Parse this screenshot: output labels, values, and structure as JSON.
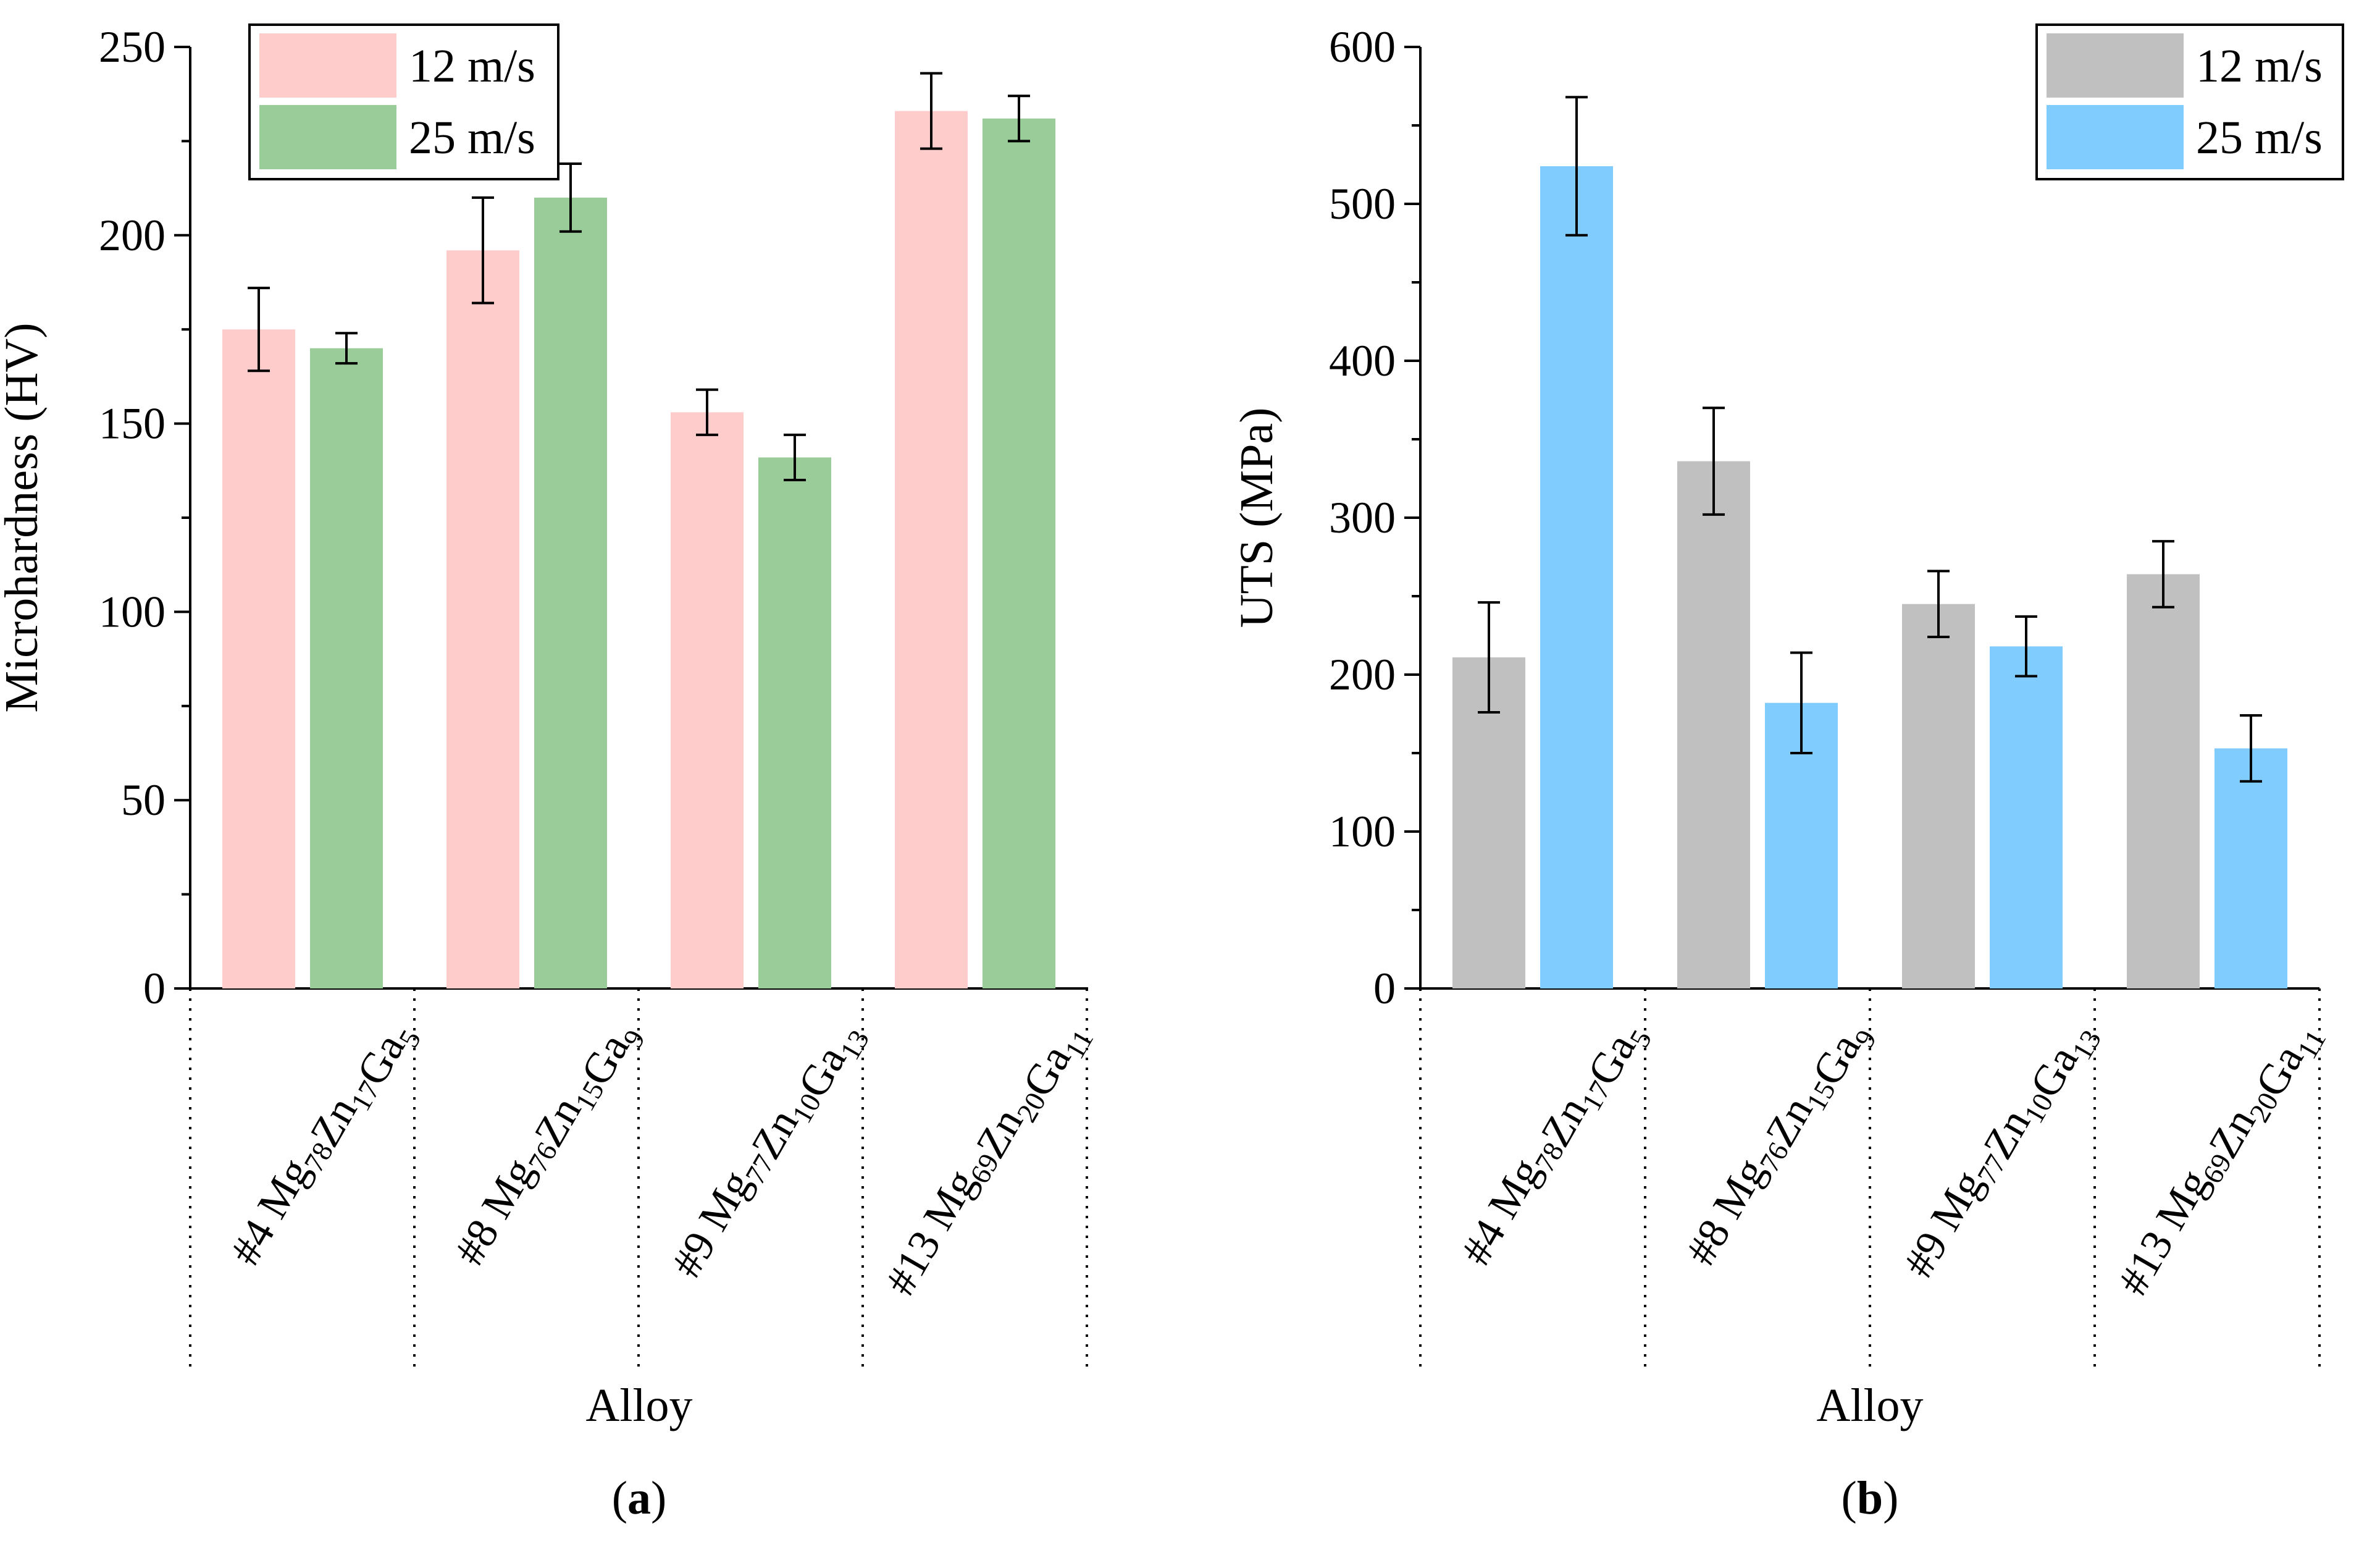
{
  "colors": {
    "hardness_12": "#ffcccc",
    "hardness_25": "#99cc99",
    "uts_12": "#c0c0c0",
    "uts_25": "#80ccff",
    "axis": "#000000"
  },
  "chart_data": [
    {
      "type": "bar",
      "panel_label": "a",
      "title": "",
      "xlabel": "Alloy",
      "ylabel": "Microhardness (HV)",
      "ylim": [
        0,
        250
      ],
      "yticks": [
        0,
        50,
        100,
        150,
        200,
        250
      ],
      "legend_position": "top-left",
      "categories": [
        {
          "prefix": "#4 ",
          "parts": [
            [
              "Mg",
              ""
            ],
            [
              "",
              "78"
            ],
            [
              "Zn",
              ""
            ],
            [
              "",
              "17"
            ],
            [
              "Ga",
              ""
            ],
            [
              "",
              "5"
            ]
          ],
          "text": "#4 Mg78Zn17Ga5"
        },
        {
          "prefix": "#8 ",
          "parts": [
            [
              "Mg",
              ""
            ],
            [
              "",
              "76"
            ],
            [
              "Zn",
              ""
            ],
            [
              "",
              "15"
            ],
            [
              "Ga",
              ""
            ],
            [
              "",
              "9"
            ]
          ],
          "text": "#8 Mg76Zn15Ga9"
        },
        {
          "prefix": "#9 ",
          "parts": [
            [
              "Mg",
              ""
            ],
            [
              "",
              "77"
            ],
            [
              "Zn",
              ""
            ],
            [
              "",
              "10"
            ],
            [
              "Ga",
              ""
            ],
            [
              "",
              "13"
            ]
          ],
          "text": "#9 Mg77Zn10Ga13"
        },
        {
          "prefix": "#13 ",
          "parts": [
            [
              "Mg",
              ""
            ],
            [
              "",
              "69"
            ],
            [
              "Zn",
              ""
            ],
            [
              "",
              "20"
            ],
            [
              "Ga",
              ""
            ],
            [
              "",
              "11"
            ]
          ],
          "text": "#13 Mg69Zn20Ga11"
        }
      ],
      "series": [
        {
          "name": "12 m/s",
          "color_key": "hardness_12",
          "values": [
            175,
            196,
            153,
            233
          ],
          "errors": [
            11,
            14,
            6,
            10
          ]
        },
        {
          "name": "25 m/s",
          "color_key": "hardness_25",
          "values": [
            170,
            210,
            141,
            231
          ],
          "errors": [
            4,
            9,
            6,
            6
          ]
        }
      ]
    },
    {
      "type": "bar",
      "panel_label": "b",
      "title": "",
      "xlabel": "Alloy",
      "ylabel": "UTS (MPa)",
      "ylim": [
        0,
        600
      ],
      "yticks": [
        0,
        100,
        200,
        300,
        400,
        500,
        600
      ],
      "legend_position": "top-right",
      "categories": [
        {
          "prefix": "#4 ",
          "parts": [
            [
              "Mg",
              ""
            ],
            [
              "",
              "78"
            ],
            [
              "Zn",
              ""
            ],
            [
              "",
              "17"
            ],
            [
              "Ga",
              ""
            ],
            [
              "",
              "5"
            ]
          ],
          "text": "#4 Mg78Zn17Ga5"
        },
        {
          "prefix": "#8 ",
          "parts": [
            [
              "Mg",
              ""
            ],
            [
              "",
              "76"
            ],
            [
              "Zn",
              ""
            ],
            [
              "",
              "15"
            ],
            [
              "Ga",
              ""
            ],
            [
              "",
              "9"
            ]
          ],
          "text": "#8 Mg76Zn15Ga9"
        },
        {
          "prefix": "#9 ",
          "parts": [
            [
              "Mg",
              ""
            ],
            [
              "",
              "77"
            ],
            [
              "Zn",
              ""
            ],
            [
              "",
              "10"
            ],
            [
              "Ga",
              ""
            ],
            [
              "",
              "13"
            ]
          ],
          "text": "#9 Mg77Zn10Ga13"
        },
        {
          "prefix": "#13 ",
          "parts": [
            [
              "Mg",
              ""
            ],
            [
              "",
              "69"
            ],
            [
              "Zn",
              ""
            ],
            [
              "",
              "20"
            ],
            [
              "Ga",
              ""
            ],
            [
              "",
              "11"
            ]
          ],
          "text": "#13 Mg69Zn20Ga11"
        }
      ],
      "series": [
        {
          "name": "12 m/s",
          "color_key": "uts_12",
          "values": [
            211,
            336,
            245,
            264
          ],
          "errors": [
            35,
            34,
            21,
            21
          ]
        },
        {
          "name": "25 m/s",
          "color_key": "uts_25",
          "values": [
            524,
            182,
            218,
            153
          ],
          "errors": [
            44,
            32,
            19,
            21
          ]
        }
      ]
    }
  ]
}
